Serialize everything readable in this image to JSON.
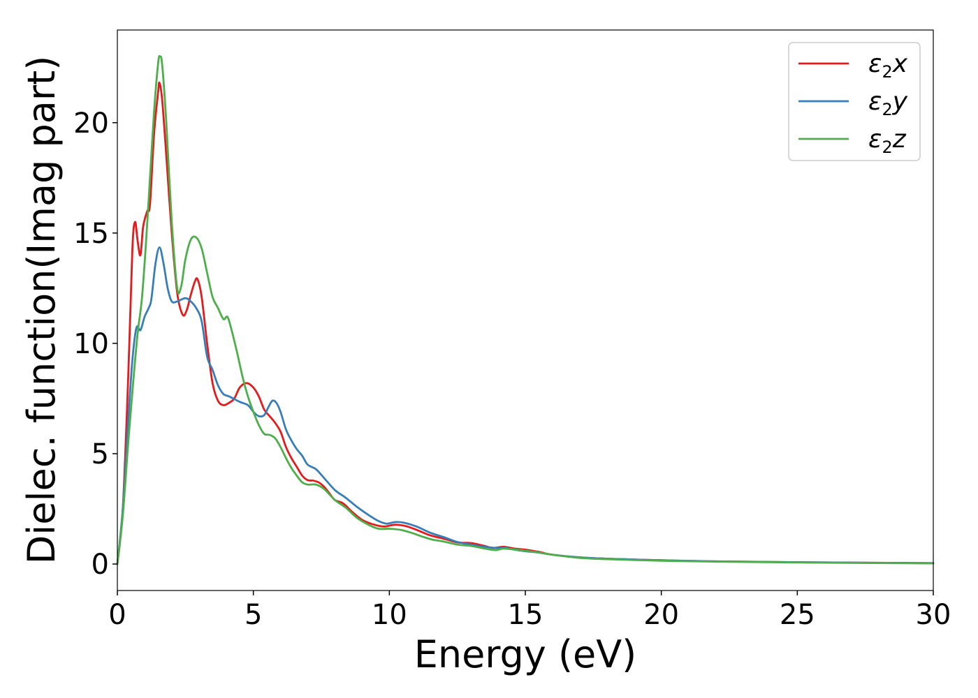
{
  "chart_data": {
    "type": "line",
    "title": "",
    "xlabel": "Energy (eV)",
    "ylabel": "Dielec. function(Imag part)",
    "xlim": [
      0,
      30
    ],
    "ylim": [
      -1.2,
      24.2
    ],
    "xticks": [
      0,
      5,
      10,
      15,
      20,
      25,
      30
    ],
    "yticks": [
      0,
      5,
      10,
      15,
      20
    ],
    "grid": false,
    "legend_position": "top-right",
    "series": [
      {
        "name": "ε2x",
        "legend_base": "ε",
        "legend_sub": "2",
        "legend_var": "x",
        "color": "#e41a1c",
        "points": [
          [
            0,
            0
          ],
          [
            0.2,
            2.5
          ],
          [
            0.4,
            8.5
          ],
          [
            0.55,
            14.2
          ],
          [
            0.65,
            15.5
          ],
          [
            0.75,
            14.6
          ],
          [
            0.85,
            14.0
          ],
          [
            0.95,
            15.3
          ],
          [
            1.1,
            16.0
          ],
          [
            1.2,
            16.3
          ],
          [
            1.35,
            19.5
          ],
          [
            1.5,
            21.4
          ],
          [
            1.55,
            21.8
          ],
          [
            1.65,
            21.0
          ],
          [
            1.8,
            18.5
          ],
          [
            2.0,
            15.0
          ],
          [
            2.2,
            12.3
          ],
          [
            2.4,
            11.3
          ],
          [
            2.55,
            11.5
          ],
          [
            2.7,
            12.2
          ],
          [
            2.85,
            12.8
          ],
          [
            2.95,
            12.9
          ],
          [
            3.1,
            12.1
          ],
          [
            3.3,
            10.0
          ],
          [
            3.5,
            8.2
          ],
          [
            3.7,
            7.4
          ],
          [
            3.9,
            7.2
          ],
          [
            4.1,
            7.3
          ],
          [
            4.3,
            7.5
          ],
          [
            4.5,
            8.0
          ],
          [
            4.75,
            8.2
          ],
          [
            5.0,
            8.0
          ],
          [
            5.2,
            7.6
          ],
          [
            5.4,
            7.0
          ],
          [
            5.6,
            6.7
          ],
          [
            5.8,
            6.4
          ],
          [
            6.0,
            6.0
          ],
          [
            6.2,
            5.3
          ],
          [
            6.4,
            4.8
          ],
          [
            6.6,
            4.4
          ],
          [
            6.8,
            4.0
          ],
          [
            7.0,
            3.8
          ],
          [
            7.2,
            3.78
          ],
          [
            7.4,
            3.7
          ],
          [
            7.6,
            3.5
          ],
          [
            7.8,
            3.2
          ],
          [
            8.0,
            2.9
          ],
          [
            8.3,
            2.75
          ],
          [
            8.6,
            2.4
          ],
          [
            9.0,
            2.0
          ],
          [
            9.4,
            1.8
          ],
          [
            9.8,
            1.7
          ],
          [
            10.2,
            1.78
          ],
          [
            10.6,
            1.72
          ],
          [
            11.0,
            1.55
          ],
          [
            11.5,
            1.3
          ],
          [
            12.0,
            1.15
          ],
          [
            12.5,
            0.98
          ],
          [
            13.0,
            0.95
          ],
          [
            13.5,
            0.82
          ],
          [
            13.8,
            0.73
          ],
          [
            14.2,
            0.78
          ],
          [
            14.6,
            0.7
          ],
          [
            15.0,
            0.65
          ],
          [
            15.5,
            0.55
          ],
          [
            16.0,
            0.42
          ],
          [
            17.0,
            0.3
          ],
          [
            18.0,
            0.24
          ],
          [
            20.0,
            0.17
          ],
          [
            22.0,
            0.12
          ],
          [
            25.0,
            0.08
          ],
          [
            30.0,
            0.04
          ]
        ]
      },
      {
        "name": "ε2y",
        "legend_base": "ε",
        "legend_sub": "2",
        "legend_var": "y",
        "color": "#377eb8",
        "points": [
          [
            0,
            0
          ],
          [
            0.2,
            2.5
          ],
          [
            0.4,
            6.5
          ],
          [
            0.55,
            9.2
          ],
          [
            0.7,
            10.7
          ],
          [
            0.85,
            10.6
          ],
          [
            1.0,
            11.2
          ],
          [
            1.15,
            11.6
          ],
          [
            1.25,
            12.0
          ],
          [
            1.4,
            13.6
          ],
          [
            1.55,
            14.35
          ],
          [
            1.7,
            13.6
          ],
          [
            1.85,
            12.5
          ],
          [
            2.0,
            11.9
          ],
          [
            2.2,
            11.9
          ],
          [
            2.5,
            12.05
          ],
          [
            2.7,
            11.9
          ],
          [
            2.9,
            11.6
          ],
          [
            3.1,
            11.0
          ],
          [
            3.3,
            9.4
          ],
          [
            3.5,
            8.8
          ],
          [
            3.7,
            8.1
          ],
          [
            3.9,
            7.7
          ],
          [
            4.1,
            7.6
          ],
          [
            4.5,
            7.35
          ],
          [
            4.8,
            7.2
          ],
          [
            5.0,
            6.9
          ],
          [
            5.2,
            6.7
          ],
          [
            5.4,
            6.75
          ],
          [
            5.55,
            7.1
          ],
          [
            5.7,
            7.4
          ],
          [
            5.85,
            7.3
          ],
          [
            6.0,
            6.9
          ],
          [
            6.2,
            6.1
          ],
          [
            6.4,
            5.6
          ],
          [
            6.6,
            5.2
          ],
          [
            6.8,
            4.9
          ],
          [
            7.0,
            4.5
          ],
          [
            7.3,
            4.3
          ],
          [
            7.6,
            3.9
          ],
          [
            8.0,
            3.35
          ],
          [
            8.4,
            3.0
          ],
          [
            8.8,
            2.6
          ],
          [
            9.2,
            2.25
          ],
          [
            9.6,
            1.95
          ],
          [
            9.9,
            1.83
          ],
          [
            10.2,
            1.9
          ],
          [
            10.5,
            1.88
          ],
          [
            11.0,
            1.7
          ],
          [
            11.5,
            1.42
          ],
          [
            12.0,
            1.22
          ],
          [
            12.5,
            1.0
          ],
          [
            13.0,
            0.88
          ],
          [
            13.5,
            0.78
          ],
          [
            14.0,
            0.72
          ],
          [
            14.3,
            0.72
          ],
          [
            14.6,
            0.65
          ],
          [
            15.0,
            0.58
          ],
          [
            15.5,
            0.52
          ],
          [
            16.0,
            0.42
          ],
          [
            17.0,
            0.3
          ],
          [
            18.0,
            0.24
          ],
          [
            20.0,
            0.17
          ],
          [
            22.0,
            0.12
          ],
          [
            25.0,
            0.08
          ],
          [
            30.0,
            0.04
          ]
        ]
      },
      {
        "name": "ε2z",
        "legend_base": "ε",
        "legend_sub": "2",
        "legend_var": "z",
        "color": "#4daf4a",
        "points": [
          [
            0,
            0
          ],
          [
            0.2,
            2.2
          ],
          [
            0.4,
            5.5
          ],
          [
            0.6,
            8.5
          ],
          [
            0.75,
            10.5
          ],
          [
            0.9,
            12.0
          ],
          [
            1.05,
            14.5
          ],
          [
            1.2,
            17.5
          ],
          [
            1.35,
            20.5
          ],
          [
            1.5,
            22.7
          ],
          [
            1.57,
            23.0
          ],
          [
            1.65,
            22.6
          ],
          [
            1.8,
            20.0
          ],
          [
            2.0,
            15.5
          ],
          [
            2.2,
            12.5
          ],
          [
            2.35,
            12.6
          ],
          [
            2.5,
            13.8
          ],
          [
            2.7,
            14.7
          ],
          [
            2.9,
            14.8
          ],
          [
            3.1,
            14.3
          ],
          [
            3.3,
            13.2
          ],
          [
            3.5,
            12.1
          ],
          [
            3.7,
            11.6
          ],
          [
            3.9,
            11.1
          ],
          [
            4.05,
            11.2
          ],
          [
            4.2,
            10.6
          ],
          [
            4.4,
            9.6
          ],
          [
            4.6,
            8.5
          ],
          [
            4.8,
            7.6
          ],
          [
            5.0,
            6.9
          ],
          [
            5.2,
            6.3
          ],
          [
            5.4,
            5.9
          ],
          [
            5.6,
            5.85
          ],
          [
            5.8,
            5.7
          ],
          [
            6.0,
            5.3
          ],
          [
            6.2,
            4.8
          ],
          [
            6.4,
            4.35
          ],
          [
            6.6,
            4.0
          ],
          [
            6.8,
            3.7
          ],
          [
            7.0,
            3.6
          ],
          [
            7.3,
            3.6
          ],
          [
            7.6,
            3.4
          ],
          [
            8.0,
            2.9
          ],
          [
            8.4,
            2.55
          ],
          [
            8.8,
            2.1
          ],
          [
            9.2,
            1.8
          ],
          [
            9.6,
            1.6
          ],
          [
            10.0,
            1.6
          ],
          [
            10.4,
            1.55
          ],
          [
            10.8,
            1.42
          ],
          [
            11.2,
            1.25
          ],
          [
            11.6,
            1.1
          ],
          [
            12.0,
            1.02
          ],
          [
            12.5,
            0.88
          ],
          [
            13.0,
            0.82
          ],
          [
            13.5,
            0.7
          ],
          [
            13.9,
            0.63
          ],
          [
            14.2,
            0.7
          ],
          [
            14.6,
            0.66
          ],
          [
            15.0,
            0.6
          ],
          [
            15.5,
            0.52
          ],
          [
            16.0,
            0.42
          ],
          [
            17.0,
            0.28
          ],
          [
            18.0,
            0.22
          ],
          [
            20.0,
            0.15
          ],
          [
            22.0,
            0.11
          ],
          [
            25.0,
            0.07
          ],
          [
            30.0,
            0.03
          ]
        ]
      }
    ]
  }
}
